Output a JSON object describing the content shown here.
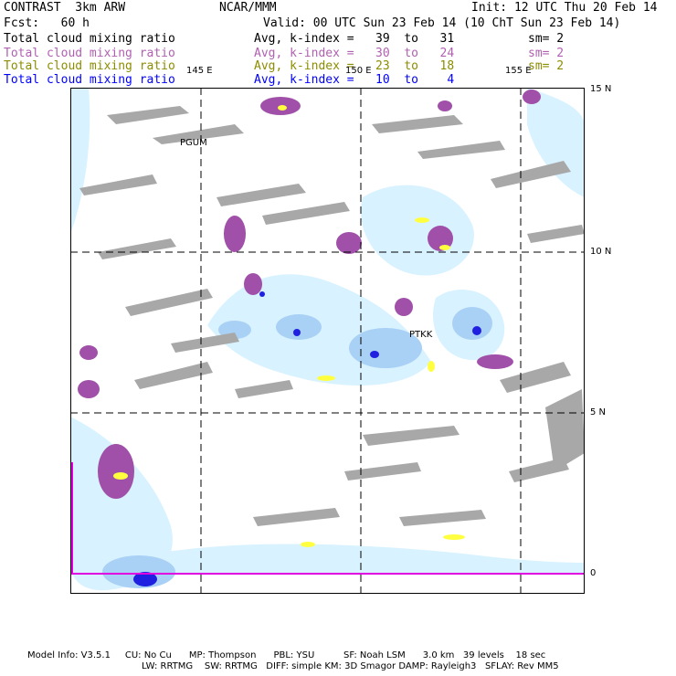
{
  "header": {
    "left_title": "CONTRAST  3km ARW",
    "center_title": "NCAR/MMM",
    "init": "Init: 12 UTC Thu 20 Feb 14",
    "fcst": "Fcst:   60 h",
    "valid": "Valid: 00 UTC Sun 23 Feb 14 (10 ChT Sun 23 Feb 14)"
  },
  "fields": [
    {
      "name": "Total cloud mixing ratio",
      "range": "Avg, k-index =   39  to   31",
      "sm": "sm= 2",
      "color": "#000000"
    },
    {
      "name": "Total cloud mixing ratio",
      "range": "Avg, k-index =   30  to   24",
      "sm": "sm= 2",
      "color": "#b060b0"
    },
    {
      "name": "Total cloud mixing ratio",
      "range": "Avg, k-index =   23  to   18",
      "sm": "sm= 2",
      "color": "#8c8c00"
    },
    {
      "name": "Total cloud mixing ratio",
      "range": "Avg, k-index =   10  to    4",
      "sm": "",
      "color": "#0000ff"
    }
  ],
  "map": {
    "lon_labels": [
      "145 E",
      "150 E",
      "155 E"
    ],
    "lat_labels": [
      "15 N",
      "10 N",
      "5 N",
      "0"
    ],
    "stations": [
      "PGUM",
      "PTKK"
    ],
    "colors": {
      "gray_cloud": "#a9a9a9",
      "purple_cloud": "#a050a8",
      "yellow_cloud": "#ffff40",
      "light_blue": "#cfefff",
      "mid_blue": "#9fc8f0",
      "dark_blue": "#1d1df0",
      "magenta_line": "#e000e0"
    }
  },
  "footer": {
    "line1": "Model Info: V3.5.1     CU: No Cu      MP: Thompson      PBL: YSU          SF: Noah LSM      3.0 km   39 levels    18 sec",
    "line2": "LW: RRTMG    SW: RRTMG   DIFF: simple KM: 3D Smagor DAMP: Rayleigh3   SFLAY: Rev MM5"
  }
}
